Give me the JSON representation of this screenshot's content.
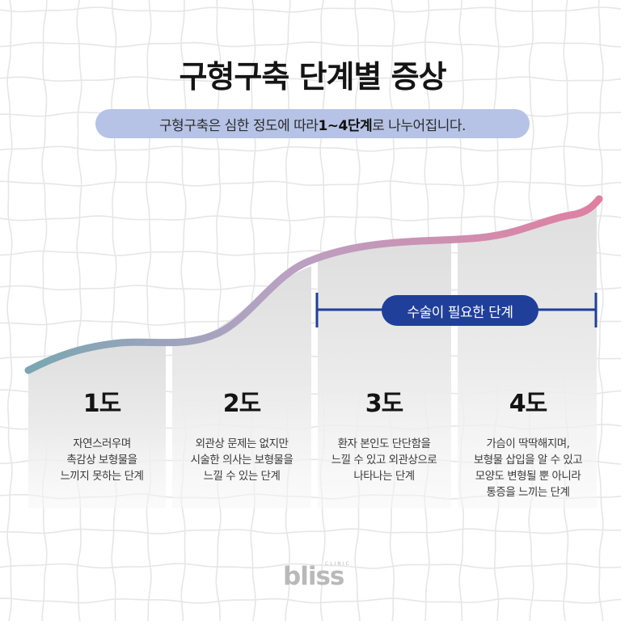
{
  "title": "구형구축 단계별 증상",
  "subtitle": {
    "prefix": "구형구축은 심한 정도에 따라 ",
    "highlight": "1~4단계",
    "suffix": "로 나누어집니다."
  },
  "surgery_label": "수술이 필요한 단계",
  "stages": [
    {
      "title": "1도",
      "description": "자연스러우며\n촉감상 보형물을\n느끼지 못하는 단계"
    },
    {
      "title": "2도",
      "description": "외관상 문제는 없지만\n시술한 의사는 보형물을\n느낄 수 있는 단계"
    },
    {
      "title": "3도",
      "description": "환자 본인도 단단함을\n느낄 수 있고 외관상으로\n나타나는 단계"
    },
    {
      "title": "4도",
      "description": "가슴이 딱딱해지며,\n보형물 삽입을 알 수 있고\n모양도 변형될 뿐 아니라\n통증을 느끼는 단계"
    }
  ],
  "logo": {
    "word": "bliss",
    "tag": "CLINIC"
  },
  "colors": {
    "curve_start": "#7aa6b2",
    "curve_mid": "#b9a1c3",
    "curve_end": "#e07fa0",
    "badge": "#1f3f9a",
    "subtitle_bg": "#b6c3e6"
  }
}
